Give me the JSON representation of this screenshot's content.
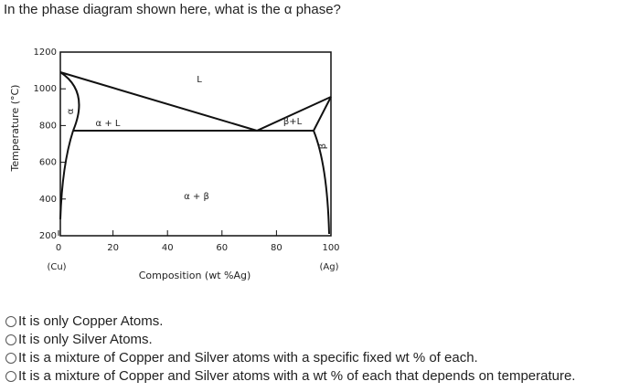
{
  "question": "In the phase diagram shown here, what is the α phase?",
  "diagram": {
    "y_axis_label": "Temperature (°C)",
    "x_axis_label": "Composition (wt %Ag)",
    "x_ticks": [
      0,
      20,
      40,
      60,
      80,
      100
    ],
    "y_ticks": [
      200,
      400,
      600,
      800,
      1000,
      1200
    ],
    "x_end_labels": [
      "(Cu)",
      "(Ag)"
    ],
    "region_labels": [
      "L",
      "α",
      "α + L",
      "β+L",
      "β",
      "α + β"
    ]
  },
  "options": [
    "It is only Copper Atoms.",
    "It is only Silver Atoms.",
    "It is a mixture of Copper and Silver atoms with a specific fixed wt % of each.",
    "It is a mixture of Copper and Silver atoms with a wt % of each that depends on temperature."
  ]
}
